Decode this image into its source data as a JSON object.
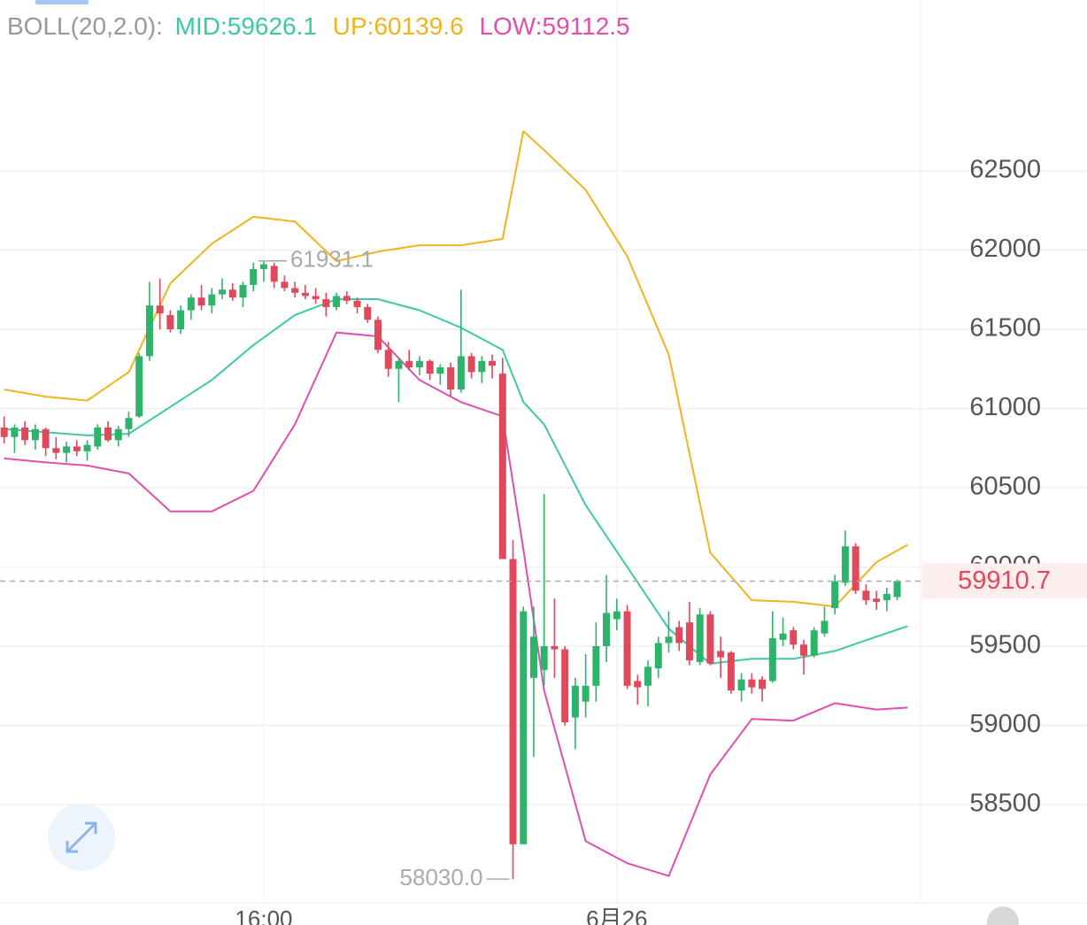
{
  "chart_data": {
    "type": "candlestick",
    "indicator_label": "BOLL(20,2.0):",
    "legend_labels": [
      "MID:59626.1",
      "UP:60139.6",
      "LOW:59112.5"
    ],
    "up_color": "#2eb46a",
    "down_color": "#e0485c",
    "ylim": [
      57880,
      63578
    ],
    "yticks": [
      58500,
      59000,
      59500,
      60000,
      60500,
      61000,
      61500,
      62000,
      62500
    ],
    "xlim": [
      -0.4,
      87.4
    ],
    "xticks": [
      {
        "value": 25,
        "label": "16:00"
      },
      {
        "value": 59,
        "label": "6月26"
      }
    ],
    "grid": true,
    "last_price": 59910.7,
    "last_price_color": "#e0485c",
    "high_label": 61931.1,
    "low_label": {
      "value": 58030,
      "label": "58030.0"
    },
    "ohlc": [
      [
        60880,
        60950,
        60780,
        60820
      ],
      [
        60820,
        60900,
        60720,
        60880
      ],
      [
        60880,
        60920,
        60770,
        60800
      ],
      [
        60800,
        60900,
        60740,
        60870
      ],
      [
        60870,
        60880,
        60700,
        60750
      ],
      [
        60750,
        60820,
        60680,
        60720
      ],
      [
        60720,
        60790,
        60660,
        60760
      ],
      [
        60760,
        60800,
        60700,
        60730
      ],
      [
        60730,
        60800,
        60670,
        60770
      ],
      [
        60760,
        60900,
        60740,
        60880
      ],
      [
        60880,
        60920,
        60790,
        60800
      ],
      [
        60800,
        60890,
        60760,
        60870
      ],
      [
        60870,
        60980,
        60820,
        60940
      ],
      [
        60950,
        61350,
        60940,
        61330
      ],
      [
        61330,
        61800,
        61300,
        61650
      ],
      [
        61650,
        61820,
        61500,
        61600
      ],
      [
        61590,
        61620,
        61480,
        61500
      ],
      [
        61500,
        61650,
        61470,
        61620
      ],
      [
        61620,
        61720,
        61560,
        61700
      ],
      [
        61700,
        61780,
        61620,
        61650
      ],
      [
        61650,
        61760,
        61600,
        61720
      ],
      [
        61720,
        61820,
        61690,
        61750
      ],
      [
        61750,
        61790,
        61680,
        61700
      ],
      [
        61700,
        61800,
        61640,
        61780
      ],
      [
        61780,
        61920,
        61740,
        61880
      ],
      [
        61880,
        61931.1,
        61800,
        61910
      ],
      [
        61900,
        61920,
        61760,
        61800
      ],
      [
        61800,
        61840,
        61740,
        61760
      ],
      [
        61760,
        61800,
        61700,
        61730
      ],
      [
        61730,
        61780,
        61690,
        61710
      ],
      [
        61710,
        61760,
        61660,
        61690
      ],
      [
        61690,
        61730,
        61580,
        61640
      ],
      [
        61640,
        61730,
        61620,
        61710
      ],
      [
        61710,
        61740,
        61660,
        61680
      ],
      [
        61680,
        61700,
        61600,
        61640
      ],
      [
        61640,
        61660,
        61540,
        61560
      ],
      [
        61560,
        61580,
        61350,
        61370
      ],
      [
        61370,
        61420,
        61200,
        61250
      ],
      [
        61250,
        61320,
        61040,
        61300
      ],
      [
        61300,
        61370,
        61240,
        61260
      ],
      [
        61260,
        61330,
        61210,
        61300
      ],
      [
        61300,
        61310,
        61180,
        61220
      ],
      [
        61220,
        61280,
        61150,
        61260
      ],
      [
        61260,
        61290,
        61080,
        61120
      ],
      [
        61120,
        61750,
        61100,
        61330
      ],
      [
        61330,
        61350,
        61190,
        61230
      ],
      [
        61230,
        61330,
        61160,
        61300
      ],
      [
        61300,
        61340,
        61190,
        61270
      ],
      [
        61220,
        61320,
        60050,
        60050
      ],
      [
        60050,
        60170,
        58030,
        58250
      ],
      [
        58250,
        59750,
        58250,
        59720
      ],
      [
        59300,
        59750,
        58800,
        59560
      ],
      [
        59350,
        60460,
        59250,
        59500
      ],
      [
        59500,
        59800,
        59300,
        59480
      ],
      [
        59480,
        59500,
        59000,
        59020
      ],
      [
        59050,
        59300,
        58850,
        59250
      ],
      [
        59150,
        59450,
        59050,
        59250
      ],
      [
        59250,
        59650,
        59150,
        59500
      ],
      [
        59500,
        59950,
        59400,
        59710
      ],
      [
        59670,
        59800,
        59600,
        59720
      ],
      [
        59720,
        59760,
        59230,
        59250
      ],
      [
        59280,
        59320,
        59130,
        59240
      ],
      [
        59250,
        59410,
        59120,
        59370
      ],
      [
        59360,
        59560,
        59300,
        59520
      ],
      [
        59520,
        59720,
        59460,
        59560
      ],
      [
        59620,
        59660,
        59470,
        59520
      ],
      [
        59650,
        59780,
        59380,
        59410
      ],
      [
        59400,
        59740,
        59380,
        59700
      ],
      [
        59700,
        59720,
        59380,
        59390
      ],
      [
        59470,
        59560,
        59300,
        59430
      ],
      [
        59460,
        59470,
        59200,
        59220
      ],
      [
        59220,
        59330,
        59150,
        59290
      ],
      [
        59290,
        59330,
        59200,
        59240
      ],
      [
        59290,
        59310,
        59150,
        59230
      ],
      [
        59280,
        59720,
        59270,
        59550
      ],
      [
        59540,
        59680,
        59500,
        59580
      ],
      [
        59600,
        59620,
        59480,
        59510
      ],
      [
        59510,
        59540,
        59320,
        59440
      ],
      [
        59440,
        59620,
        59430,
        59600
      ],
      [
        59580,
        59750,
        59560,
        59660
      ],
      [
        59740,
        59950,
        59700,
        59910
      ],
      [
        59900,
        60230,
        59880,
        60130
      ],
      [
        60130,
        60150,
        59830,
        59850
      ],
      [
        59850,
        59890,
        59760,
        59790
      ],
      [
        59800,
        59850,
        59730,
        59780
      ],
      [
        59790,
        59870,
        59720,
        59830
      ],
      [
        59810,
        59920,
        59790,
        59910.7
      ]
    ],
    "bands": {
      "x": [
        0,
        4,
        8,
        12,
        16,
        20,
        24,
        28,
        32,
        36,
        40,
        44,
        48,
        50,
        52,
        56,
        60,
        64,
        68,
        72,
        76,
        80,
        84,
        87
      ],
      "series": [
        {
          "name": "MID",
          "color": "#3cc9a6",
          "values": [
            60870,
            60850,
            60830,
            60840,
            61010,
            61180,
            61400,
            61590,
            61690,
            61690,
            61620,
            61510,
            61370,
            61040,
            60900,
            60390,
            60000,
            59610,
            59390,
            59420,
            59420,
            59470,
            59560,
            59626.1
          ]
        },
        {
          "name": "UP",
          "color": "#f0b41c",
          "values": [
            61120,
            61075,
            61050,
            61230,
            61790,
            62040,
            62210,
            62180,
            61930,
            61990,
            62030,
            62030,
            62070,
            62750,
            62630,
            62380,
            61960,
            61340,
            60090,
            59790,
            59780,
            59750,
            60030,
            60139.6
          ]
        },
        {
          "name": "LOW",
          "color": "#e04fb0",
          "values": [
            60685,
            60660,
            60640,
            60590,
            60350,
            60350,
            60480,
            60900,
            61480,
            61455,
            61180,
            61040,
            60950,
            60110,
            59220,
            58270,
            58130,
            58050,
            58690,
            59040,
            59030,
            59140,
            59100,
            59112.5
          ]
        }
      ]
    }
  }
}
